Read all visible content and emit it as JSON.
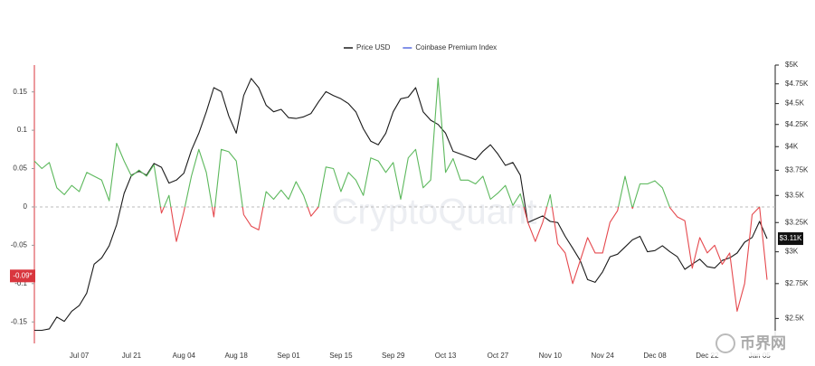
{
  "chart_data": {
    "type": "line",
    "legend": "top",
    "watermark": "CryptoQuant",
    "corner_logo": "币界网",
    "categories": [
      null,
      null,
      null,
      null,
      null,
      null,
      "Jul 07",
      null,
      null,
      null,
      null,
      null,
      null,
      "Jul 21",
      null,
      null,
      null,
      null,
      null,
      null,
      "Aug 04",
      null,
      null,
      null,
      null,
      null,
      null,
      "Aug 18",
      null,
      null,
      null,
      null,
      null,
      null,
      "Sep 01",
      null,
      null,
      null,
      null,
      null,
      null,
      "Sep 15",
      null,
      null,
      null,
      null,
      null,
      null,
      "Sep 29",
      null,
      null,
      null,
      null,
      null,
      null,
      "Oct 13",
      null,
      null,
      null,
      null,
      null,
      null,
      "Oct 27",
      null,
      null,
      null,
      null,
      null,
      null,
      "Nov 10",
      null,
      null,
      null,
      null,
      null,
      null,
      "Nov 24",
      null,
      null,
      null,
      null,
      null,
      null,
      "Dec 08",
      null,
      null,
      null,
      null,
      null,
      null,
      "Dec 22",
      null,
      null,
      null,
      null,
      null,
      null,
      "Jan 05",
      null
    ],
    "ylim": [
      -0.178,
      0.185
    ],
    "yticks": [
      -0.15,
      -0.1,
      -0.05,
      0,
      0.05,
      0.1,
      0.15
    ],
    "y2lim": [
      2335,
      5000
    ],
    "y2_log": true,
    "y2ticks": [
      {
        "value": 2500,
        "label": "$2.5K"
      },
      {
        "value": 2750,
        "label": "$2.75K"
      },
      {
        "value": 3000,
        "label": "$3K"
      },
      {
        "value": 3250,
        "label": "$3.25K"
      },
      {
        "value": 3500,
        "label": "$3.5K"
      },
      {
        "value": 3750,
        "label": "$3.75K"
      },
      {
        "value": 4000,
        "label": "$4K"
      },
      {
        "value": 4250,
        "label": "$4.25K"
      },
      {
        "value": 4500,
        "label": "$4.5K"
      },
      {
        "value": 4750,
        "label": "$4.75K"
      },
      {
        "value": 5000,
        "label": "$5K"
      }
    ],
    "zero_line": true,
    "y_current": {
      "value": -0.09,
      "label": "-0.09*",
      "color": "#d9363e"
    },
    "y2_current": {
      "value": 3110,
      "label": "$3.11K",
      "color": "#111111"
    },
    "series": [
      {
        "name": "Price USD",
        "color": "#1a1a1a",
        "axis": "y2",
        "values": [
          2420,
          2420,
          2430,
          2510,
          2480,
          2550,
          2590,
          2680,
          2900,
          2950,
          3050,
          3230,
          3520,
          3700,
          3740,
          3700,
          3820,
          3780,
          3620,
          3650,
          3720,
          3960,
          4150,
          4400,
          4700,
          4650,
          4350,
          4150,
          4600,
          4820,
          4700,
          4480,
          4400,
          4430,
          4330,
          4320,
          4340,
          4380,
          4520,
          4650,
          4600,
          4560,
          4500,
          4400,
          4200,
          4060,
          4020,
          4150,
          4400,
          4560,
          4580,
          4700,
          4400,
          4300,
          4250,
          4150,
          3950,
          3920,
          3890,
          3860,
          3950,
          4020,
          3920,
          3800,
          3830,
          3700,
          3250,
          3280,
          3310,
          3260,
          3250,
          3130,
          3030,
          2930,
          2780,
          2760,
          2840,
          2960,
          2980,
          3040,
          3100,
          3130,
          3000,
          3010,
          3050,
          3000,
          2960,
          2860,
          2900,
          2940,
          2880,
          2870,
          2930,
          2950,
          2990,
          3080,
          3120,
          3260,
          3110
        ]
      },
      {
        "name": "Coinbase Premium Index",
        "color": "#5b6ee1",
        "positive_color": "#5cb85c",
        "negative_color": "#e5484d",
        "values": [
          0.06,
          0.05,
          0.058,
          0.025,
          0.016,
          0.028,
          0.02,
          0.045,
          0.04,
          0.035,
          0.008,
          0.083,
          0.06,
          0.04,
          0.048,
          0.04,
          0.055,
          -0.008,
          0.015,
          -0.045,
          -0.006,
          0.04,
          0.075,
          0.045,
          -0.013,
          0.075,
          0.072,
          0.06,
          -0.01,
          -0.025,
          -0.03,
          0.02,
          0.01,
          0.022,
          0.01,
          0.033,
          0.015,
          -0.012,
          0.0,
          0.052,
          0.05,
          0.02,
          0.045,
          0.035,
          0.015,
          0.064,
          0.06,
          0.045,
          0.058,
          0.01,
          0.064,
          0.075,
          0.025,
          0.035,
          0.168,
          0.045,
          0.063,
          0.035,
          0.035,
          0.03,
          0.04,
          0.01,
          0.018,
          0.028,
          0.002,
          0.017,
          -0.02,
          -0.045,
          -0.02,
          0.016,
          -0.048,
          -0.06,
          -0.1,
          -0.07,
          -0.04,
          -0.06,
          -0.06,
          -0.02,
          -0.005,
          0.04,
          -0.002,
          0.03,
          0.03,
          0.034,
          0.025,
          -0.001,
          -0.013,
          -0.018,
          -0.08,
          -0.04,
          -0.06,
          -0.05,
          -0.075,
          -0.06,
          -0.136,
          -0.1,
          -0.01,
          0.0,
          -0.095
        ]
      }
    ]
  }
}
